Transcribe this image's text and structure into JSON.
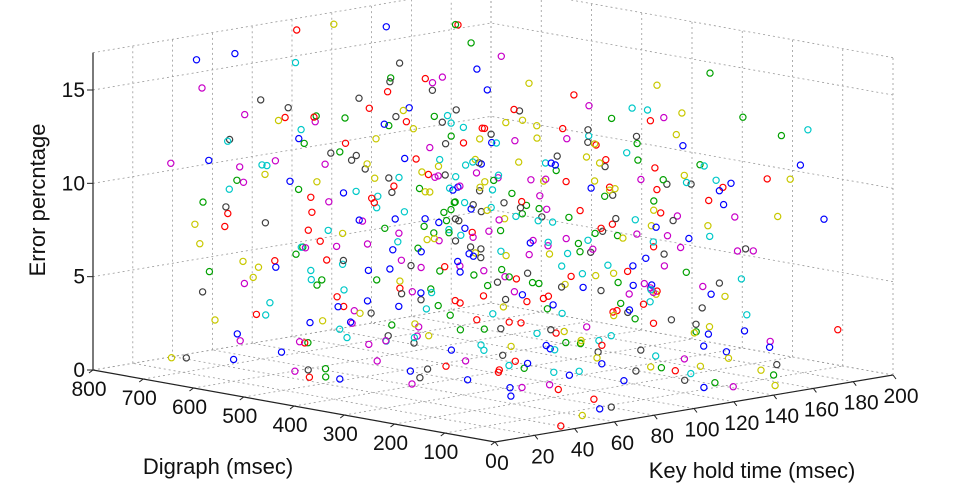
{
  "chart_data": {
    "type": "scatter",
    "title": "",
    "projection": "3d",
    "xlabel": "Key hold time (msec)",
    "ylabel": "Digraph (msec)",
    "zlabel": "Error percntage",
    "x_ticks": [
      0,
      20,
      40,
      60,
      80,
      100,
      120,
      140,
      160,
      180,
      200
    ],
    "y_ticks": [
      0,
      100,
      200,
      300,
      400,
      500,
      600,
      700,
      800
    ],
    "z_ticks": [
      0,
      5,
      10,
      15
    ],
    "xlim": [
      0,
      200
    ],
    "ylim": [
      0,
      800
    ],
    "zlim": [
      0,
      15
    ],
    "grid": true,
    "marker": "open-circle",
    "series_colors": [
      "#0000ff",
      "#00a000",
      "#ff0000",
      "#00c8c8",
      "#c800c8",
      "#c8c800",
      "#404040"
    ],
    "points_per_series": 80,
    "point_note": "Approximately 560 scattered points; key hold time mostly 40-160 msec, digraph 0-800 msec, error 0-17 percent."
  }
}
